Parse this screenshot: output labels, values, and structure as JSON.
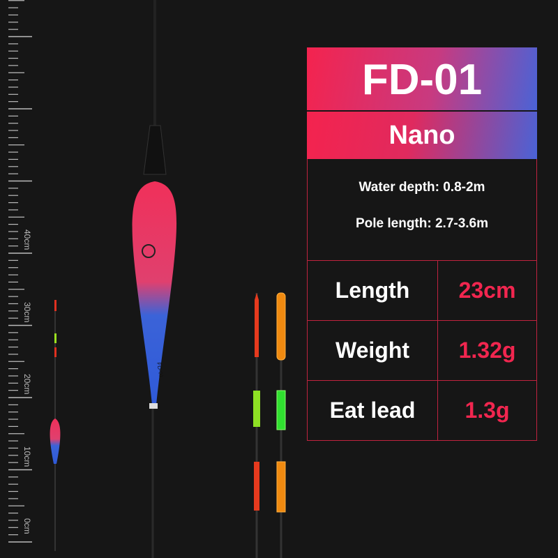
{
  "ruler": {
    "labels": [
      "40cm",
      "30cm",
      "20cm",
      "10cm",
      "0cm"
    ],
    "unit": "cm"
  },
  "float": {
    "model_mark": "FD-01",
    "colors": {
      "top": "#f0305a",
      "bottom": "#2f5ad8"
    }
  },
  "spec_panel": {
    "model": "FD-01",
    "series": "Nano",
    "water_depth": "Water depth: 0.8-2m",
    "pole_length": "Pole length: 2.7-3.6m",
    "rows": [
      {
        "label": "Length",
        "value": "23cm"
      },
      {
        "label": "Weight",
        "value": "1.32g"
      },
      {
        "label": "Eat lead",
        "value": "1.3g"
      }
    ],
    "accent_color": "#f1264f",
    "gradient": [
      "#f4234e",
      "#4a63d6"
    ]
  }
}
